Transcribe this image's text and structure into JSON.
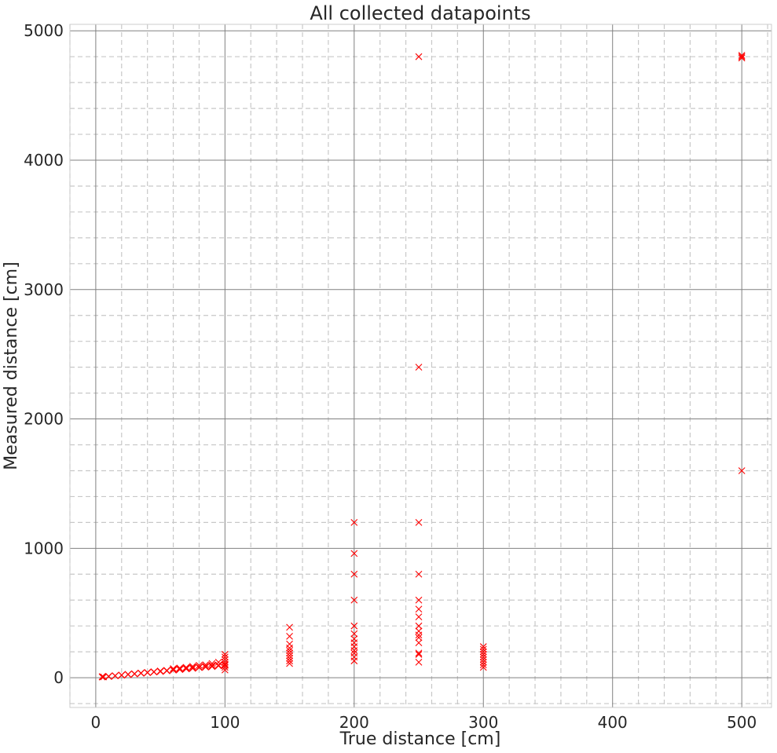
{
  "chart_data": {
    "type": "scatter",
    "title": "All collected datapoints",
    "xlabel": "True distance [cm]",
    "ylabel": "Measured distance [cm]",
    "xlim": [
      -20,
      523
    ],
    "ylim": [
      -230,
      5050
    ],
    "x_ticks": [
      0,
      100,
      200,
      300,
      400,
      500
    ],
    "y_ticks": [
      0,
      1000,
      2000,
      3000,
      4000,
      5000
    ],
    "x_minor_step": 20,
    "y_minor_step": 200,
    "grid": true,
    "marker": "x",
    "marker_color": "#ff0000",
    "points": [
      [
        5,
        5
      ],
      [
        5,
        8
      ],
      [
        6,
        6
      ],
      [
        10,
        9
      ],
      [
        10,
        11
      ],
      [
        15,
        14
      ],
      [
        15,
        16
      ],
      [
        20,
        19
      ],
      [
        20,
        21
      ],
      [
        25,
        24
      ],
      [
        25,
        26
      ],
      [
        30,
        29
      ],
      [
        30,
        31
      ],
      [
        35,
        34
      ],
      [
        35,
        36
      ],
      [
        40,
        39
      ],
      [
        40,
        41
      ],
      [
        45,
        44
      ],
      [
        45,
        46
      ],
      [
        50,
        48
      ],
      [
        50,
        52
      ],
      [
        55,
        53
      ],
      [
        55,
        57
      ],
      [
        60,
        58
      ],
      [
        60,
        62
      ],
      [
        60,
        70
      ],
      [
        65,
        63
      ],
      [
        65,
        67
      ],
      [
        65,
        75
      ],
      [
        70,
        68
      ],
      [
        70,
        72
      ],
      [
        70,
        80
      ],
      [
        75,
        72
      ],
      [
        75,
        78
      ],
      [
        75,
        88
      ],
      [
        80,
        78
      ],
      [
        80,
        82
      ],
      [
        80,
        95
      ],
      [
        85,
        82
      ],
      [
        85,
        88
      ],
      [
        85,
        100
      ],
      [
        90,
        86
      ],
      [
        90,
        95
      ],
      [
        90,
        110
      ],
      [
        95,
        92
      ],
      [
        95,
        98
      ],
      [
        95,
        120
      ],
      [
        100,
        60
      ],
      [
        100,
        80
      ],
      [
        100,
        95
      ],
      [
        100,
        100
      ],
      [
        100,
        105
      ],
      [
        100,
        120
      ],
      [
        100,
        140
      ],
      [
        100,
        160
      ],
      [
        100,
        180
      ],
      [
        150,
        110
      ],
      [
        150,
        130
      ],
      [
        150,
        150
      ],
      [
        150,
        170
      ],
      [
        150,
        190
      ],
      [
        150,
        210
      ],
      [
        150,
        230
      ],
      [
        150,
        260
      ],
      [
        150,
        320
      ],
      [
        150,
        390
      ],
      [
        200,
        130
      ],
      [
        200,
        160
      ],
      [
        200,
        190
      ],
      [
        200,
        210
      ],
      [
        200,
        240
      ],
      [
        200,
        270
      ],
      [
        200,
        300
      ],
      [
        200,
        340
      ],
      [
        200,
        400
      ],
      [
        200,
        600
      ],
      [
        200,
        800
      ],
      [
        200,
        960
      ],
      [
        200,
        1200
      ],
      [
        250,
        120
      ],
      [
        250,
        180
      ],
      [
        250,
        190
      ],
      [
        250,
        270
      ],
      [
        250,
        310
      ],
      [
        250,
        330
      ],
      [
        250,
        360
      ],
      [
        250,
        400
      ],
      [
        250,
        470
      ],
      [
        250,
        530
      ],
      [
        250,
        600
      ],
      [
        250,
        800
      ],
      [
        250,
        1200
      ],
      [
        250,
        2400
      ],
      [
        250,
        4800
      ],
      [
        300,
        80
      ],
      [
        300,
        100
      ],
      [
        300,
        120
      ],
      [
        300,
        140
      ],
      [
        300,
        160
      ],
      [
        300,
        180
      ],
      [
        300,
        200
      ],
      [
        300,
        220
      ],
      [
        300,
        240
      ],
      [
        500,
        1600
      ],
      [
        500,
        4790
      ],
      [
        500,
        4800
      ],
      [
        500,
        4810
      ]
    ]
  }
}
